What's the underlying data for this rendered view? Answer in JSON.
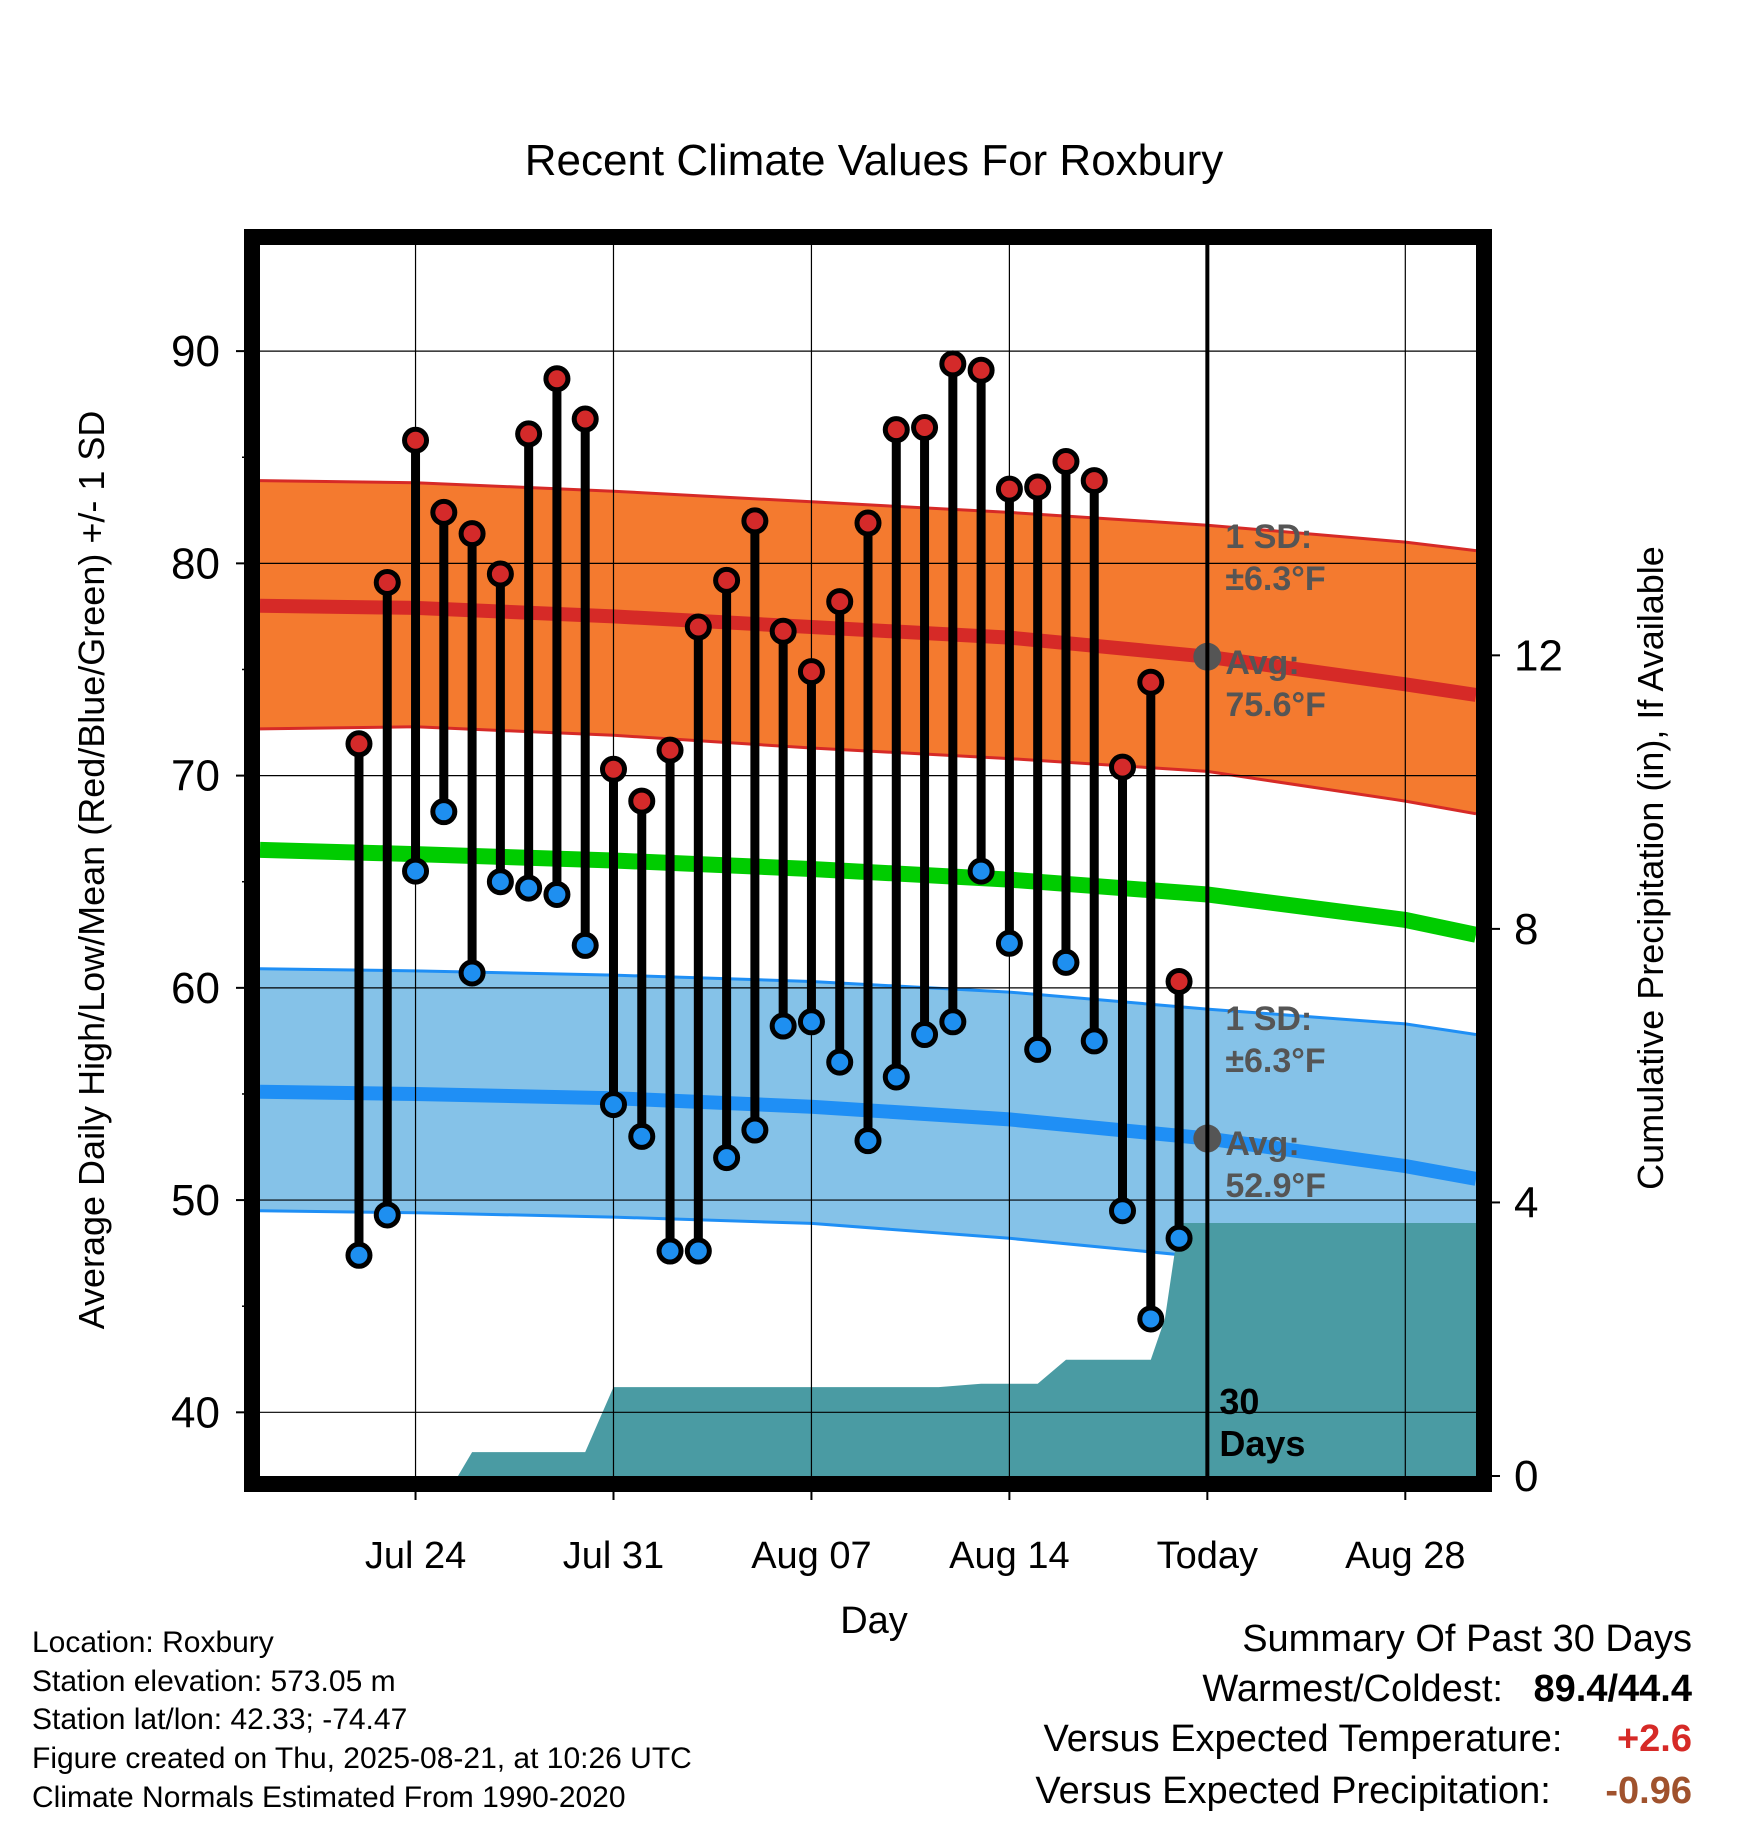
{
  "chart_data": {
    "type": "line",
    "title": "Recent Climate Values For Roxbury",
    "xlabel": "Day",
    "ylabel": "Average Daily High/Low/Mean (Red/Blue/Green) +/- 1 SD",
    "y2label": "Cumulative Precipitation (in), If Available",
    "ylim": [
      37,
      95
    ],
    "y2lim": [
      0,
      18
    ],
    "xlim": [
      -33.5,
      9.5
    ],
    "x_ticks": [
      {
        "day": -28,
        "label": "Jul 24"
      },
      {
        "day": -21,
        "label": "Jul 31"
      },
      {
        "day": -14,
        "label": "Aug 07"
      },
      {
        "day": -7,
        "label": "Aug 14"
      },
      {
        "day": 0,
        "label": "Today"
      },
      {
        "day": 7,
        "label": "Aug 28"
      }
    ],
    "y_ticks": [
      40,
      50,
      60,
      70,
      80,
      90
    ],
    "y2_ticks": [
      0,
      4,
      8,
      12
    ],
    "daily_x": [
      -30,
      -29,
      -28,
      -27,
      -26,
      -25,
      -24,
      -23,
      -22,
      -21,
      -20,
      -19,
      -18,
      -17,
      -16,
      -15,
      -14,
      -13,
      -12,
      -11,
      -10,
      -9,
      -8,
      -7,
      -6,
      -5,
      -4,
      -3,
      -2,
      -1
    ],
    "daily_high": [
      71.5,
      79.1,
      85.8,
      82.4,
      81.4,
      79.5,
      86.1,
      88.7,
      86.8,
      70.3,
      68.8,
      71.2,
      77.0,
      79.2,
      82.0,
      76.8,
      74.9,
      78.2,
      81.9,
      86.3,
      86.4,
      89.4,
      89.1,
      83.5,
      83.6,
      84.8,
      83.9,
      70.4,
      74.4,
      60.3
    ],
    "daily_low": [
      47.4,
      49.3,
      65.5,
      68.3,
      60.7,
      65.0,
      64.7,
      64.4,
      62.0,
      54.5,
      53.0,
      47.6,
      47.6,
      52.0,
      53.3,
      58.2,
      58.4,
      56.5,
      52.8,
      55.8,
      57.8,
      58.4,
      65.5,
      62.1,
      57.1,
      61.2,
      57.5,
      49.5,
      44.4,
      48.2
    ],
    "normals_x": [
      -33.5,
      -28,
      -21,
      -14,
      -7,
      0,
      7,
      9.5
    ],
    "normal_high": [
      78.0,
      77.9,
      77.5,
      77.0,
      76.5,
      75.6,
      74.3,
      73.8
    ],
    "normal_high_upper": [
      83.9,
      83.8,
      83.4,
      82.9,
      82.4,
      81.8,
      81.0,
      80.6
    ],
    "normal_high_lower": [
      72.2,
      72.3,
      71.9,
      71.3,
      70.8,
      70.2,
      68.8,
      68.2
    ],
    "normal_low": [
      55.1,
      55.0,
      54.8,
      54.4,
      53.8,
      52.9,
      51.6,
      51.0
    ],
    "normal_low_upper": [
      60.9,
      60.8,
      60.6,
      60.3,
      59.8,
      59.0,
      58.3,
      57.8
    ],
    "normal_low_lower": [
      49.5,
      49.4,
      49.2,
      48.9,
      48.2,
      47.3,
      45.7,
      45.0
    ],
    "normal_mean": [
      66.5,
      66.3,
      66.0,
      65.6,
      65.1,
      64.4,
      63.2,
      62.5
    ],
    "precip_x": [
      -28.5,
      -26.5,
      -26,
      -23,
      -22,
      -21,
      -19,
      -12,
      -9.5,
      -8,
      -7,
      -6,
      -5,
      -4,
      -3,
      -2,
      -1.5,
      -1,
      0,
      9.5
    ],
    "precip_cum": [
      0,
      0,
      0.35,
      0.35,
      0.35,
      1.3,
      1.3,
      1.3,
      1.3,
      1.35,
      1.35,
      1.35,
      1.7,
      1.7,
      1.7,
      1.7,
      2.3,
      3.7,
      3.7,
      3.7
    ],
    "today_marker_label": "30\nDays",
    "annotations": {
      "high_sd_label": "1 SD:",
      "high_sd_value": "±6.3°F",
      "high_avg_label": "Avg:",
      "high_avg_value": "75.6°F",
      "low_sd_label": "1 SD:",
      "low_sd_value": "±6.3°F",
      "low_avg_label": "Avg:",
      "low_avg_value": "52.9°F"
    },
    "colors": {
      "high_band": "#f47a2f",
      "high_line": "#d62a27",
      "low_band": "#85c2e8",
      "low_line": "#1f8ff5",
      "mean_line": "#00cc00",
      "precip": "#4a9ba3",
      "high_dot": "#d42a2a",
      "low_dot": "#1e8ff0",
      "annotation": "#555555"
    },
    "grid": true
  },
  "footer": {
    "location": "Location: Roxbury",
    "elevation": "Station elevation: 573.05 m",
    "latlon": "Station lat/lon: 42.33; -74.47",
    "created": "Figure created on Thu, 2025-08-21, at 10:26 UTC",
    "normals": "Climate Normals Estimated From 1990-2020"
  },
  "summary": {
    "title": "Summary Of Past 30 Days",
    "warm_cold_label": "Warmest/Coldest:",
    "warm_cold_value": "89.4/44.4",
    "temp_label": "Versus Expected Temperature:",
    "temp_value": "+2.6",
    "temp_color": "#d62a27",
    "precip_label": "Versus Expected Precipitation:",
    "precip_value": "-0.96",
    "precip_color": "#a0522d"
  }
}
